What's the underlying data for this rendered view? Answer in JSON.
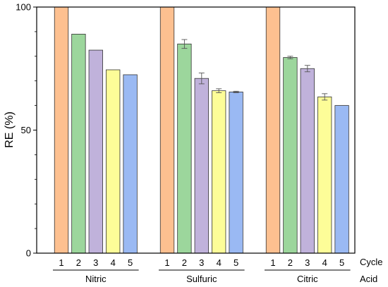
{
  "chart_data": {
    "type": "bar",
    "title": "",
    "ylabel": "RE (%)",
    "xlabel": "",
    "ylim": [
      0,
      100
    ],
    "yticks": [
      0,
      50,
      100
    ],
    "grid": false,
    "legend": "none",
    "row_labels": {
      "cycle": "Cycle",
      "acid": "Acid"
    },
    "cycles": [
      "1",
      "2",
      "3",
      "4",
      "5"
    ],
    "cycle_colors": [
      "#fdc090",
      "#9cd69c",
      "#c0b2db",
      "#fdfd98",
      "#9ab9f3"
    ],
    "groups": [
      {
        "name": "Nitric",
        "values": [
          100,
          89,
          82.5,
          74.5,
          72.5
        ],
        "errors": [
          0,
          0,
          0,
          0,
          0
        ]
      },
      {
        "name": "Sulfuric",
        "values": [
          100,
          85,
          71,
          66,
          65.5
        ],
        "errors": [
          0,
          1.8,
          2.2,
          0.8,
          0.3
        ]
      },
      {
        "name": "Citric",
        "values": [
          100,
          79.5,
          75,
          63.5,
          60
        ],
        "errors": [
          0,
          0.5,
          1.3,
          1.3,
          0
        ]
      }
    ]
  }
}
